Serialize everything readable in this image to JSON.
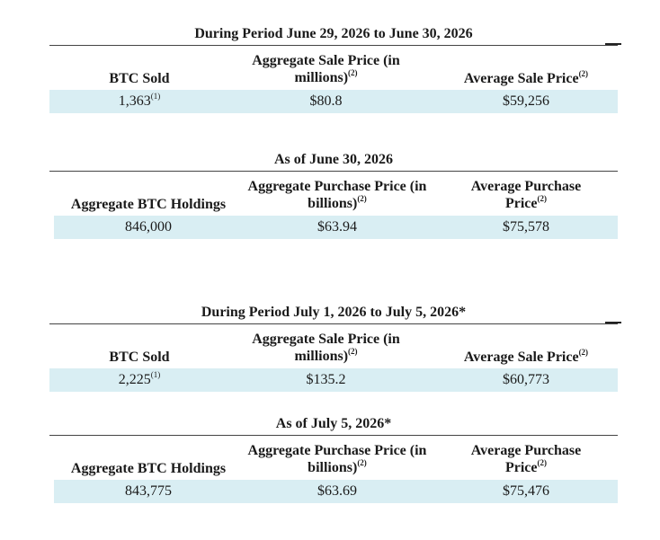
{
  "tables": [
    {
      "title": "During Period June 29, 2026 to June 30, 2026",
      "headers": [
        {
          "text": "BTC Sold",
          "sup": ""
        },
        {
          "text": "Aggregate Sale Price (in millions)",
          "sup": "(2)"
        },
        {
          "text": "Average Sale Price",
          "sup": "(2)"
        }
      ],
      "values": [
        {
          "text": "1,363",
          "sup": "(1)"
        },
        {
          "text": "$80.8",
          "sup": ""
        },
        {
          "text": "$59,256",
          "sup": ""
        }
      ]
    },
    {
      "title": "As of June 30, 2026",
      "headers": [
        {
          "text": "Aggregate BTC Holdings",
          "sup": ""
        },
        {
          "text": "Aggregate Purchase Price (in billions)",
          "sup": "(2)"
        },
        {
          "text": "Average Purchase Price",
          "sup": "(2)"
        }
      ],
      "values": [
        {
          "text": "846,000",
          "sup": ""
        },
        {
          "text": "$63.94",
          "sup": ""
        },
        {
          "text": "$75,578",
          "sup": ""
        }
      ]
    },
    {
      "title": "During Period July 1, 2026 to July 5, 2026*",
      "headers": [
        {
          "text": "BTC Sold",
          "sup": ""
        },
        {
          "text": "Aggregate Sale Price (in millions)",
          "sup": "(2)"
        },
        {
          "text": "Average Sale Price",
          "sup": "(2)"
        }
      ],
      "values": [
        {
          "text": "2,225",
          "sup": "(1)"
        },
        {
          "text": "$135.2",
          "sup": ""
        },
        {
          "text": "$60,773",
          "sup": ""
        }
      ]
    },
    {
      "title": "As of July 5, 2026*",
      "headers": [
        {
          "text": "Aggregate BTC Holdings",
          "sup": ""
        },
        {
          "text": "Aggregate Purchase Price (in billions)",
          "sup": "(2)"
        },
        {
          "text": "Average Purchase Price",
          "sup": "(2)"
        }
      ],
      "values": [
        {
          "text": "843,775",
          "sup": ""
        },
        {
          "text": "$63.69",
          "sup": ""
        },
        {
          "text": "$75,476",
          "sup": ""
        }
      ]
    }
  ]
}
